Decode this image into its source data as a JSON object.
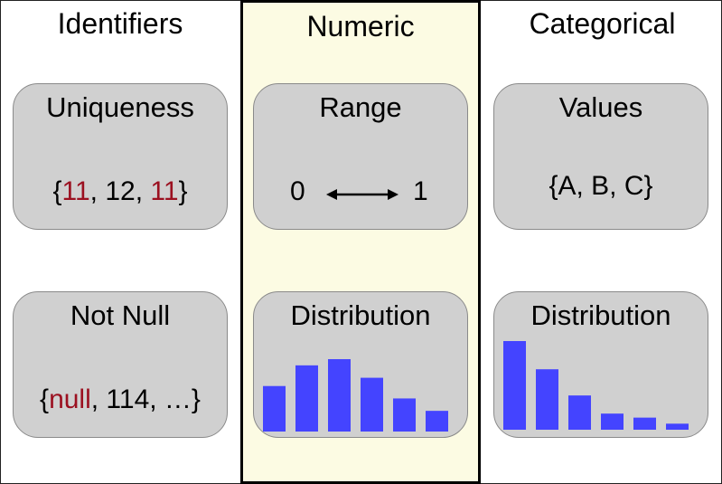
{
  "columns": {
    "identifiers": {
      "title": "Identifiers",
      "uniqueness": {
        "title": "Uniqueness",
        "open": "{",
        "v1": "11",
        "sep1": ", ",
        "v2": "12",
        "sep2": ", ",
        "v3": "11",
        "close": "}"
      },
      "not_null": {
        "title": "Not Null",
        "open": "{",
        "v1": "null",
        "rest": ", 114, …}"
      }
    },
    "numeric": {
      "title": "Numeric",
      "range": {
        "title": "Range",
        "min": "0",
        "max": "1"
      },
      "distribution": {
        "title": "Distribution"
      }
    },
    "categorical": {
      "title": "Categorical",
      "values": {
        "title": "Values",
        "text": "{A, B, C}"
      },
      "distribution": {
        "title": "Distribution"
      }
    }
  },
  "colors": {
    "highlight": "#9b1020",
    "bar": "#4444ff",
    "card": "#d0d0d0",
    "numeric_bg": "#fcfbe3"
  },
  "chart_data": [
    {
      "type": "bar",
      "name": "numeric-distribution",
      "values": [
        2.2,
        3.2,
        3.5,
        2.6,
        1.6,
        1.0
      ],
      "ylim": [
        0,
        3.5
      ]
    },
    {
      "type": "bar",
      "name": "categorical-distribution",
      "values": [
        4.4,
        3.0,
        1.7,
        0.8,
        0.6,
        0.3
      ],
      "ylim": [
        0,
        4.4
      ]
    }
  ]
}
